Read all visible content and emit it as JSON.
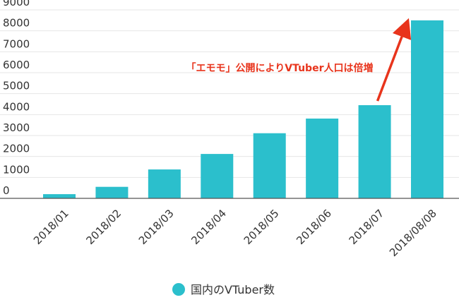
{
  "chart_data": {
    "type": "bar",
    "title": "",
    "xlabel": "",
    "ylabel": "",
    "ylim": [
      0,
      9000
    ],
    "yticks": [
      0,
      1000,
      2000,
      3000,
      4000,
      5000,
      6000,
      7000,
      8000,
      9000
    ],
    "grid": true,
    "categories": [
      "2018/01",
      "2018/02",
      "2018/03",
      "2018/04",
      "2018/05",
      "2018/06",
      "2018/07",
      "2018/08/08"
    ],
    "series": [
      {
        "name": "国内のVTuber数",
        "color": "#2bbfcc",
        "values": [
          200,
          550,
          1380,
          2120,
          3110,
          3810,
          4450,
          8500
        ]
      }
    ],
    "legend": {
      "placement": "bottom",
      "label": "国内のVTuber数"
    },
    "annotation": {
      "text": "「エモモ」公開によりVTuber人口は倍増",
      "color": "#e8341c",
      "arrow_from_category": "2018/07",
      "arrow_to_category": "2018/08/08"
    }
  }
}
